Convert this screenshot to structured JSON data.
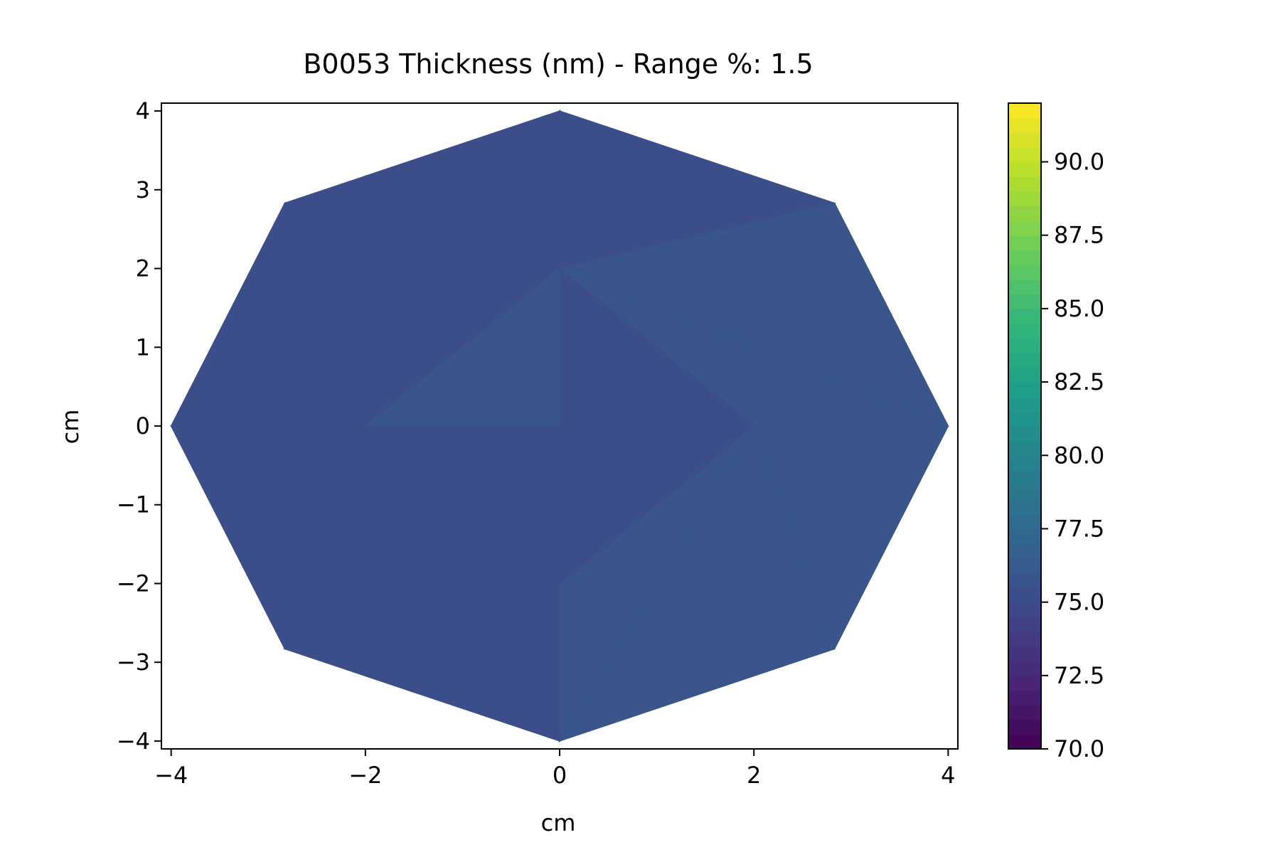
{
  "chart_data": {
    "type": "heatmap",
    "title": "B0053 Thickness (nm) - Range %: 1.5",
    "xlabel": "cm",
    "ylabel": "cm",
    "xlim": [
      -4.1,
      4.1
    ],
    "ylim": [
      -4.1,
      4.1
    ],
    "x_ticks": [
      {
        "value": -4,
        "label": "−4"
      },
      {
        "value": -2,
        "label": "−2"
      },
      {
        "value": 0,
        "label": "0"
      },
      {
        "value": 2,
        "label": "2"
      },
      {
        "value": 4,
        "label": "4"
      }
    ],
    "y_ticks": [
      {
        "value": 4,
        "label": "4"
      },
      {
        "value": 3,
        "label": "3"
      },
      {
        "value": 2,
        "label": "2"
      },
      {
        "value": 1,
        "label": "1"
      },
      {
        "value": 0,
        "label": "0"
      },
      {
        "value": -1,
        "label": "−1"
      },
      {
        "value": -2,
        "label": "−2"
      },
      {
        "value": -3,
        "label": "−3"
      },
      {
        "value": -4,
        "label": "−4"
      }
    ],
    "colorbar": {
      "colormap": "viridis",
      "range": [
        70.0,
        92.0
      ],
      "ticks": [
        {
          "value": 70.0,
          "label": "70.0"
        },
        {
          "value": 72.5,
          "label": "72.5"
        },
        {
          "value": 75.0,
          "label": "75.0"
        },
        {
          "value": 77.5,
          "label": "77.5"
        },
        {
          "value": 80.0,
          "label": "80.0"
        },
        {
          "value": 82.5,
          "label": "82.5"
        },
        {
          "value": 85.0,
          "label": "85.0"
        },
        {
          "value": 87.5,
          "label": "87.5"
        },
        {
          "value": 90.0,
          "label": "90.0"
        }
      ]
    },
    "measurement_points": [
      {
        "x": 0,
        "y": 0,
        "thickness": 75.0
      },
      {
        "x": 0,
        "y": 4,
        "thickness": 74.7
      },
      {
        "x": 2.83,
        "y": 2.83,
        "thickness": 75.3
      },
      {
        "x": 4,
        "y": 0,
        "thickness": 76.2
      },
      {
        "x": 2.83,
        "y": -2.83,
        "thickness": 75.8
      },
      {
        "x": 0,
        "y": -4,
        "thickness": 75.9
      },
      {
        "x": -2.83,
        "y": -2.83,
        "thickness": 75.1
      },
      {
        "x": -4,
        "y": 0,
        "thickness": 75.0
      },
      {
        "x": -2.83,
        "y": 2.83,
        "thickness": 74.6
      },
      {
        "x": 0,
        "y": 2,
        "thickness": 75.7
      },
      {
        "x": 2,
        "y": 0,
        "thickness": 75.6
      },
      {
        "x": 0,
        "y": -2,
        "thickness": 75.0
      },
      {
        "x": -2,
        "y": 0,
        "thickness": 75.8
      }
    ]
  }
}
